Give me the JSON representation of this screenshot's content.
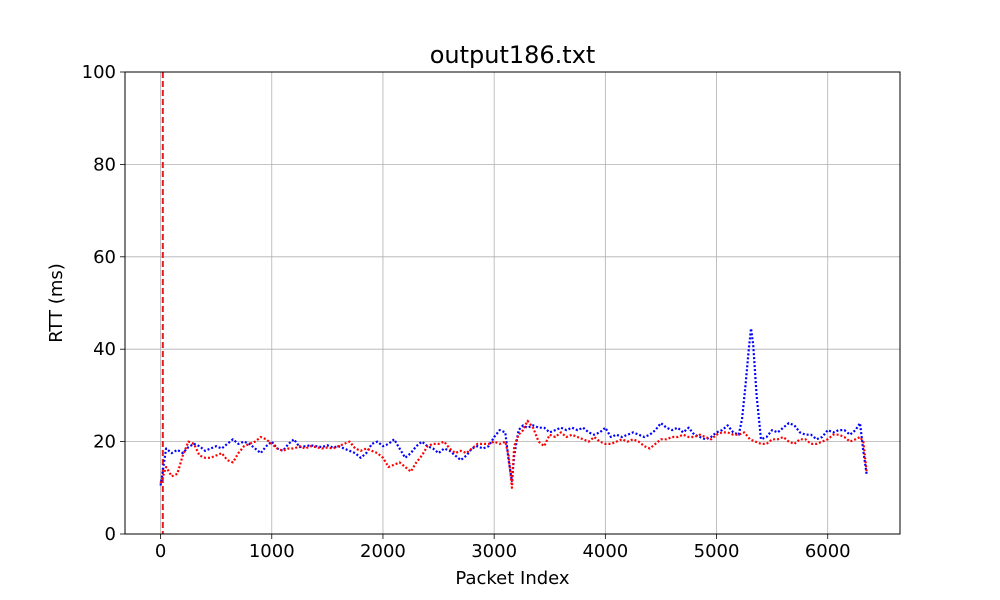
{
  "chart_data": {
    "type": "line",
    "title": "output186.txt",
    "xlabel": "Packet Index",
    "ylabel": "RTT (ms)",
    "xlim": [
      -320,
      6650
    ],
    "ylim": [
      0,
      100
    ],
    "xticks": [
      0,
      1000,
      2000,
      3000,
      4000,
      5000,
      6000
    ],
    "yticks": [
      0,
      20,
      40,
      60,
      80,
      100
    ],
    "grid": true,
    "legend": "none",
    "vline": {
      "x": 20,
      "color": "#e41a1c",
      "style": "dashed"
    },
    "series": [
      {
        "color": "#0000ff",
        "style": "dotted",
        "x": [
          0,
          50,
          100,
          150,
          200,
          250,
          300,
          350,
          400,
          450,
          500,
          550,
          600,
          650,
          700,
          750,
          800,
          850,
          900,
          950,
          1000,
          1050,
          1100,
          1150,
          1200,
          1250,
          1300,
          1350,
          1400,
          1450,
          1500,
          1550,
          1600,
          1650,
          1700,
          1750,
          1800,
          1850,
          1900,
          1950,
          2000,
          2050,
          2100,
          2150,
          2200,
          2250,
          2300,
          2350,
          2400,
          2450,
          2500,
          2550,
          2600,
          2650,
          2700,
          2750,
          2800,
          2850,
          2900,
          2950,
          3000,
          3050,
          3100,
          3130,
          3160,
          3180,
          3220,
          3260,
          3300,
          3350,
          3400,
          3450,
          3500,
          3550,
          3600,
          3650,
          3700,
          3750,
          3800,
          3850,
          3900,
          3950,
          4000,
          4050,
          4100,
          4150,
          4200,
          4250,
          4300,
          4350,
          4400,
          4450,
          4500,
          4550,
          4600,
          4650,
          4700,
          4750,
          4800,
          4850,
          4900,
          4950,
          5000,
          5050,
          5100,
          5150,
          5200,
          5230,
          5260,
          5290,
          5310,
          5330,
          5360,
          5400,
          5450,
          5500,
          5550,
          5600,
          5650,
          5700,
          5750,
          5800,
          5850,
          5900,
          5950,
          6000,
          6050,
          6100,
          6150,
          6200,
          6250,
          6290,
          6320,
          6350
        ],
        "y": [
          10.5,
          18.5,
          17.5,
          18.2,
          17.5,
          18.8,
          19.5,
          19,
          18,
          18.5,
          19,
          18.5,
          19.5,
          20.5,
          19.5,
          20,
          19.5,
          18.5,
          17.5,
          19,
          20,
          18.5,
          18,
          19.5,
          20.5,
          18.8,
          19,
          19.2,
          19,
          18.8,
          19.2,
          18.7,
          19,
          18.5,
          18,
          17.5,
          16.5,
          17.5,
          19.5,
          20,
          19,
          19.5,
          20.5,
          18.5,
          16.5,
          17.5,
          19,
          20,
          19,
          18.5,
          17.5,
          18.5,
          18,
          17,
          16,
          17,
          18.5,
          19,
          18.5,
          19,
          21,
          22.5,
          22,
          16,
          11.5,
          17,
          22.5,
          23.5,
          23,
          23.5,
          23,
          23,
          22,
          22.5,
          23,
          22.5,
          23,
          22.5,
          23,
          22,
          21.5,
          22,
          23,
          21,
          21.5,
          21,
          21.5,
          22,
          21.5,
          21,
          21.5,
          22.5,
          24,
          23,
          22.5,
          23,
          22,
          23,
          21.5,
          21,
          20.5,
          21,
          22,
          22.5,
          23.5,
          22,
          21.5,
          25,
          32,
          40,
          44.5,
          41,
          30,
          20.5,
          21,
          22.5,
          22,
          23,
          24,
          23.5,
          22,
          21.5,
          21.5,
          20.5,
          21,
          22.5,
          22,
          22.5,
          22.5,
          21.5,
          22.5,
          24,
          18,
          13
        ]
      },
      {
        "color": "#ff0000",
        "style": "dotted",
        "x": [
          0,
          50,
          100,
          150,
          200,
          250,
          300,
          350,
          400,
          450,
          500,
          550,
          600,
          650,
          700,
          750,
          800,
          850,
          900,
          950,
          1000,
          1050,
          1100,
          1150,
          1200,
          1250,
          1300,
          1350,
          1400,
          1450,
          1500,
          1550,
          1600,
          1650,
          1700,
          1750,
          1800,
          1850,
          1900,
          1950,
          2000,
          2050,
          2100,
          2150,
          2200,
          2250,
          2300,
          2350,
          2400,
          2450,
          2500,
          2550,
          2600,
          2650,
          2700,
          2750,
          2800,
          2850,
          2900,
          2950,
          3000,
          3050,
          3100,
          3130,
          3160,
          3180,
          3220,
          3260,
          3300,
          3350,
          3400,
          3450,
          3500,
          3550,
          3600,
          3650,
          3700,
          3750,
          3800,
          3850,
          3900,
          3950,
          4000,
          4050,
          4100,
          4150,
          4200,
          4250,
          4300,
          4350,
          4400,
          4450,
          4500,
          4550,
          4600,
          4650,
          4700,
          4750,
          4800,
          4850,
          4900,
          4950,
          5000,
          5050,
          5100,
          5150,
          5200,
          5250,
          5300,
          5350,
          5400,
          5450,
          5500,
          5550,
          5600,
          5650,
          5700,
          5750,
          5800,
          5850,
          5900,
          5950,
          6000,
          6050,
          6100,
          6150,
          6200,
          6250,
          6290,
          6320,
          6350
        ],
        "y": [
          11,
          14.5,
          12.5,
          13,
          17,
          20,
          19.5,
          17,
          16.5,
          16.5,
          17,
          17.5,
          16,
          15.5,
          17.5,
          19,
          19.5,
          20,
          21,
          20.5,
          19.5,
          18.5,
          18,
          18.5,
          18.5,
          19,
          18.5,
          19,
          18.8,
          18.5,
          18.7,
          18.5,
          19,
          19.5,
          20,
          18.5,
          18,
          18.5,
          18,
          17.5,
          16.5,
          14.5,
          15,
          15.5,
          14.5,
          13.5,
          15.5,
          17,
          19,
          19.5,
          19.5,
          20,
          18.5,
          17.5,
          18,
          17.5,
          18.5,
          19.5,
          19.5,
          19.5,
          20,
          19.5,
          20,
          17,
          10,
          19,
          21.5,
          22.5,
          24.5,
          23,
          20,
          19,
          21.5,
          21,
          22,
          21,
          21.5,
          21,
          20.5,
          20,
          21,
          20,
          19.5,
          19.5,
          20,
          20.5,
          20,
          20.5,
          20,
          19,
          18.5,
          19.5,
          20.5,
          20.5,
          21,
          21,
          21.5,
          21,
          21,
          21.5,
          21,
          20.5,
          21.5,
          22,
          22,
          21.5,
          21.5,
          22,
          20.5,
          20,
          19.5,
          19.5,
          20.5,
          20.5,
          21,
          20,
          19.5,
          20.5,
          20.5,
          19.5,
          19.5,
          20,
          20.5,
          21.5,
          21.5,
          21,
          20,
          20.5,
          21,
          20,
          13.5
        ]
      }
    ]
  }
}
